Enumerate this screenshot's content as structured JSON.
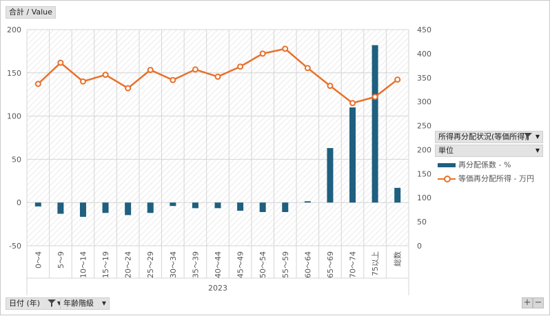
{
  "value_field": "合計 / Value",
  "date_field": "日付 (年)",
  "age_field": "年齢階級",
  "legend": {
    "field1": "所得再分配状況(等価所得)",
    "field2": "単位",
    "entries": [
      "再分配係数 - %",
      "等価再分配所得 - 万円"
    ]
  },
  "zoom": {
    "plus": "+",
    "minus": "−"
  },
  "colors": {
    "bar": "#1f5f7f",
    "line": "#e8702a"
  },
  "chart_data": {
    "type": "bar+line",
    "year_label": "2023",
    "categories": [
      "0～4",
      "5～9",
      "10～14",
      "15～19",
      "20～24",
      "25～29",
      "30～34",
      "35～39",
      "40～44",
      "45～49",
      "50～54",
      "55～59",
      "60～64",
      "65～69",
      "70～74",
      "75以上",
      "総数"
    ],
    "series": [
      {
        "name": "再分配係数 - %",
        "type": "bar",
        "axis": "left",
        "values": [
          -4.5,
          -13,
          -16.5,
          -12,
          -14.5,
          -12,
          -4,
          -6.5,
          -6.5,
          -9.5,
          -11,
          -11,
          1.5,
          63,
          110,
          182,
          17
        ]
      },
      {
        "name": "等価再分配所得 - 万円",
        "type": "line",
        "axis": "right",
        "values": [
          337,
          381,
          342,
          356,
          328,
          366,
          345,
          367,
          352,
          373,
          400,
          410,
          370,
          333,
          297,
          310,
          346
        ]
      }
    ],
    "left_axis": {
      "min": -50,
      "max": 200,
      "ticks": [
        -50,
        0,
        50,
        100,
        150,
        200
      ]
    },
    "right_axis": {
      "min": 0,
      "max": 450,
      "ticks": [
        0,
        50,
        100,
        150,
        200,
        250,
        300,
        350,
        400,
        450
      ]
    },
    "grid": true
  }
}
